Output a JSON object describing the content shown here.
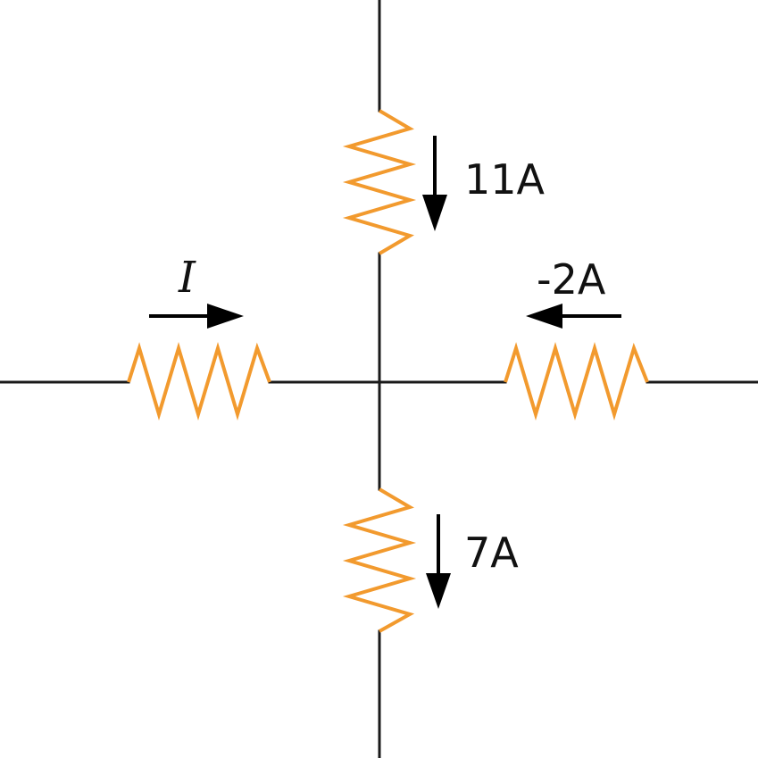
{
  "diagram": {
    "colors": {
      "wire": "#1a1a1a",
      "resistor": "#f29a2e",
      "arrow": "#000000"
    },
    "labels": {
      "top_current": "11A",
      "left_current": "I",
      "right_current": "-2A",
      "bottom_current": "7A"
    }
  }
}
